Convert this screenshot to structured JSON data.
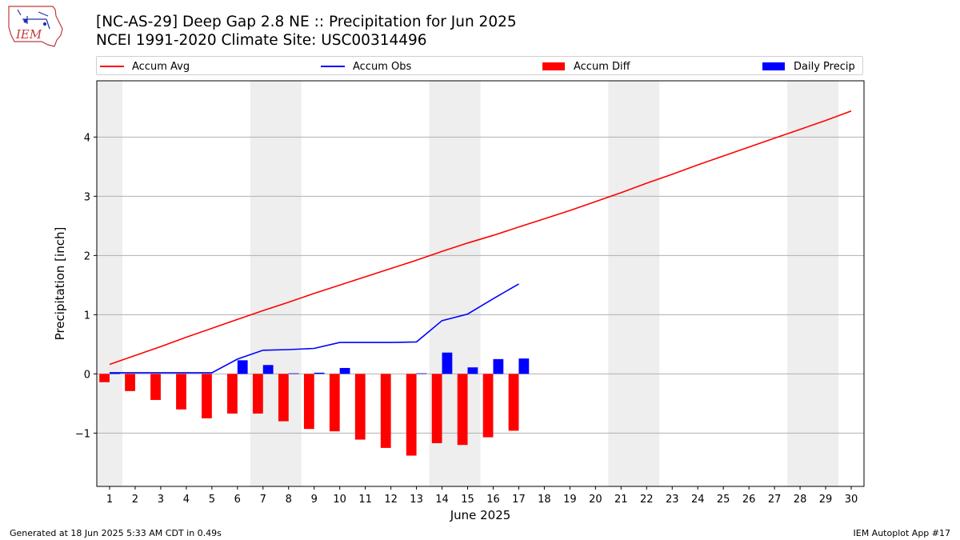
{
  "logo": {
    "text": "IEM"
  },
  "header": {
    "title_line1": "[NC-AS-29] Deep Gap 2.8 NE :: Precipitation for Jun 2025",
    "title_line2": "NCEI 1991-2020 Climate Site: USC00314496"
  },
  "legend": [
    {
      "label": "Accum Avg",
      "kind": "line",
      "color": "#ff0000"
    },
    {
      "label": "Accum Obs",
      "kind": "line",
      "color": "#0000ff"
    },
    {
      "label": "Accum Diff",
      "kind": "bar",
      "color": "#ff0000"
    },
    {
      "label": "Daily Precip",
      "kind": "bar",
      "color": "#0000ff"
    }
  ],
  "footer": {
    "left": "Generated at 18 Jun 2025 5:33 AM CDT in 0.49s",
    "right": "IEM Autoplot App #17"
  },
  "chart_data": {
    "type": "bar",
    "xlabel": "June 2025",
    "ylabel": "Precipitation [inch]",
    "xlim": [
      0.5,
      30.5
    ],
    "ylim": [
      -1.9,
      4.95
    ],
    "x_ticks": [
      1,
      2,
      3,
      4,
      5,
      6,
      7,
      8,
      9,
      10,
      11,
      12,
      13,
      14,
      15,
      16,
      17,
      18,
      19,
      20,
      21,
      22,
      23,
      24,
      25,
      26,
      27,
      28,
      29,
      30
    ],
    "y_ticks": [
      -1,
      0,
      1,
      2,
      3,
      4
    ],
    "grid": "horizontal",
    "weekend_shading": [
      [
        0.5,
        1.5
      ],
      [
        6.5,
        8.5
      ],
      [
        13.5,
        15.5
      ],
      [
        20.5,
        22.5
      ],
      [
        27.5,
        29.5
      ]
    ],
    "series": [
      {
        "name": "Accum Avg",
        "kind": "line",
        "color": "#ff0000",
        "x": [
          1,
          2,
          3,
          4,
          5,
          6,
          7,
          8,
          9,
          10,
          11,
          12,
          13,
          14,
          15,
          16,
          17,
          18,
          19,
          20,
          21,
          22,
          23,
          24,
          25,
          26,
          27,
          28,
          29,
          30
        ],
        "values": [
          0.16,
          0.31,
          0.46,
          0.62,
          0.77,
          0.92,
          1.07,
          1.21,
          1.36,
          1.5,
          1.64,
          1.78,
          1.92,
          2.07,
          2.21,
          2.34,
          2.48,
          2.62,
          2.76,
          2.91,
          3.06,
          3.22,
          3.37,
          3.53,
          3.68,
          3.83,
          3.98,
          4.13,
          4.28,
          4.44
        ]
      },
      {
        "name": "Accum Obs",
        "kind": "line",
        "color": "#0000ff",
        "x": [
          1,
          2,
          3,
          4,
          5,
          6,
          7,
          8,
          9,
          10,
          11,
          12,
          13,
          14,
          15,
          16,
          17
        ],
        "values": [
          0.02,
          0.02,
          0.02,
          0.02,
          0.02,
          0.25,
          0.4,
          0.41,
          0.43,
          0.53,
          0.53,
          0.53,
          0.54,
          0.9,
          1.01,
          1.27,
          1.52
        ]
      },
      {
        "name": "Accum Diff",
        "kind": "bar",
        "color": "#ff0000",
        "x": [
          1,
          2,
          3,
          4,
          5,
          6,
          7,
          8,
          9,
          10,
          11,
          12,
          13,
          14,
          15,
          16,
          17
        ],
        "values": [
          -0.14,
          -0.29,
          -0.44,
          -0.6,
          -0.75,
          -0.67,
          -0.67,
          -0.8,
          -0.93,
          -0.97,
          -1.11,
          -1.25,
          -1.38,
          -1.17,
          -1.2,
          -1.07,
          -0.96
        ]
      },
      {
        "name": "Daily Precip",
        "kind": "bar",
        "color": "#0000ff",
        "x": [
          1,
          2,
          3,
          4,
          5,
          6,
          7,
          8,
          9,
          10,
          11,
          12,
          13,
          14,
          15,
          16,
          17
        ],
        "values": [
          0.02,
          0.0,
          0.0,
          0.0,
          0.0,
          0.23,
          0.15,
          0.01,
          0.02,
          0.1,
          0.0,
          0.0,
          0.01,
          0.36,
          0.11,
          0.25,
          0.26
        ]
      }
    ]
  }
}
